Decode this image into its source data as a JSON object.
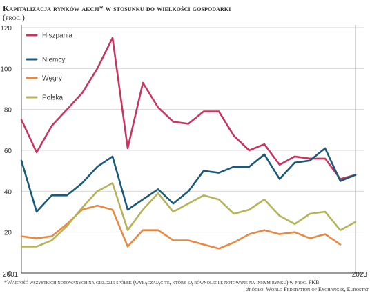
{
  "header": {
    "title": "Kapitalizacja rynków akcji* w stosunku do wielkości gospodarki",
    "subtitle": "(proc.)"
  },
  "footer": {
    "footnote": "*Wartość wszystkich notowanych na giełdzie spółek (wyłączając te, które są równolegle notowane na innym rynku) w proc. PKB",
    "source": "źródło: World Federation of Exchanges, Eurostat"
  },
  "colors": {
    "Hiszpania": "#c8355f",
    "Niemcy": "#1b5a78",
    "Węgry": "#e58a45",
    "Polska": "#b4b45a",
    "grid": "#d7d7d7",
    "axis": "#333333"
  },
  "chart_data": {
    "type": "line",
    "x": [
      2001,
      2002,
      2003,
      2004,
      2005,
      2006,
      2007,
      2008,
      2009,
      2010,
      2011,
      2012,
      2013,
      2014,
      2015,
      2016,
      2017,
      2018,
      2019,
      2020,
      2021,
      2022,
      2023
    ],
    "x_tick_labels": [
      "2001",
      "2023"
    ],
    "y_ticks": [
      0,
      20,
      40,
      60,
      80,
      100,
      120
    ],
    "ylim": [
      0,
      120
    ],
    "grid": true,
    "legend_placement": "top-left",
    "series": [
      {
        "name": "Hiszpania",
        "values": [
          75,
          59,
          72,
          80,
          88,
          100,
          115,
          61,
          93,
          81,
          74,
          73,
          79,
          79,
          67,
          60,
          63,
          53,
          57,
          56,
          56,
          46,
          48
        ]
      },
      {
        "name": "Niemcy",
        "values": [
          55,
          30,
          38,
          38,
          44,
          52,
          57,
          31,
          36,
          41,
          34,
          40,
          50,
          49,
          52,
          52,
          58,
          46,
          54,
          55,
          61,
          45,
          48
        ]
      },
      {
        "name": "Węgry",
        "values": [
          18,
          17,
          18,
          24,
          31,
          33,
          31,
          13,
          21,
          21,
          16,
          16,
          14,
          12,
          15,
          19,
          21,
          19,
          20,
          17,
          19,
          14,
          null
        ]
      },
      {
        "name": "Polska",
        "values": [
          13,
          13,
          16,
          23,
          32,
          40,
          44,
          21,
          31,
          39,
          30,
          34,
          38,
          36,
          29,
          31,
          36,
          28,
          24,
          29,
          30,
          21,
          25
        ]
      }
    ]
  }
}
